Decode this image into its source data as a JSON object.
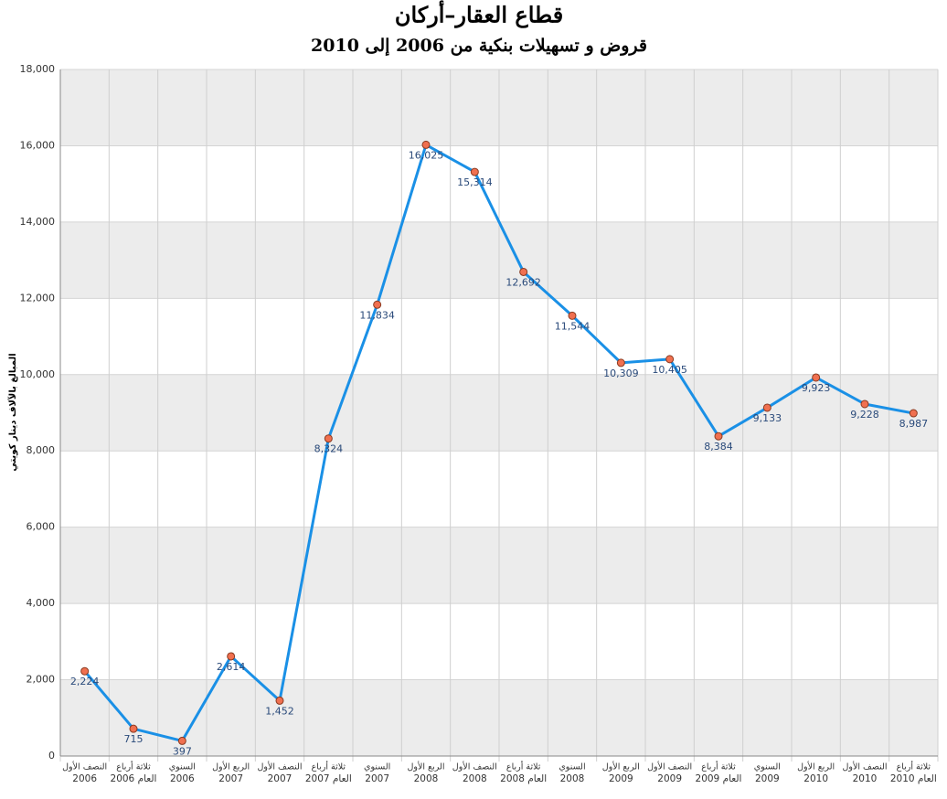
{
  "chart_data": {
    "type": "line",
    "title": "قطاع العقار–أركان",
    "subtitle": "قروض و تسهيلات بنكية من 2006 إلى 2010",
    "y_label": "المبالغ بالآلاف دينار كويتي",
    "categories": [
      [
        "النصف الأول",
        "2006"
      ],
      [
        "ثلاثة أرباع",
        "العام 2006"
      ],
      [
        "السنوي",
        "2006"
      ],
      [
        "الربع الأول",
        "2007"
      ],
      [
        "النصف الأول",
        "2007"
      ],
      [
        "ثلاثة أرباع",
        "العام 2007"
      ],
      [
        "السنوي",
        "2007"
      ],
      [
        "الربع الأول",
        "2008"
      ],
      [
        "النصف الأول",
        "2008"
      ],
      [
        "ثلاثة أرباع",
        "العام 2008"
      ],
      [
        "السنوي",
        "2008"
      ],
      [
        "الربع الأول",
        "2009"
      ],
      [
        "النصف الأول",
        "2009"
      ],
      [
        "ثلاثة أرباع",
        "العام 2009"
      ],
      [
        "السنوي",
        "2009"
      ],
      [
        "الربع الأول",
        "2010"
      ],
      [
        "النصف الأول",
        "2010"
      ],
      [
        "ثلاثة أرباع",
        "العام 2010"
      ]
    ],
    "values": [
      2224,
      715,
      397,
      2614,
      1452,
      8324,
      11834,
      16025,
      15314,
      12692,
      11544,
      10309,
      10405,
      8384,
      9133,
      9923,
      9228,
      8987
    ],
    "value_labels": [
      "2,224",
      "715",
      "397",
      "2,614",
      "1,452",
      "8,324",
      "11,834",
      "16,025",
      "15,314",
      "12,692",
      "11,544",
      "10,309",
      "10,405",
      "8,384",
      "9,133",
      "9,923",
      "9,228",
      "8,987"
    ],
    "color": "#1a90e6",
    "marker_color": "#f07050",
    "ylim": [
      0,
      18000
    ],
    "yticks": [
      0,
      {
        "value": 2000,
        "label": "2,000"
      },
      {
        "value": 4000,
        "label": "4,000"
      },
      {
        "value": 6000,
        "label": "6,000"
      },
      {
        "value": 8000,
        "label": "8,000"
      },
      {
        "value": 10000,
        "label": "10,000"
      },
      {
        "value": 12000,
        "label": "12,000"
      },
      {
        "value": 14000,
        "label": "14,000"
      },
      {
        "value": 16000,
        "label": "16,000"
      },
      {
        "value": 18000,
        "label": "18,000"
      }
    ],
    "grid": true
  }
}
